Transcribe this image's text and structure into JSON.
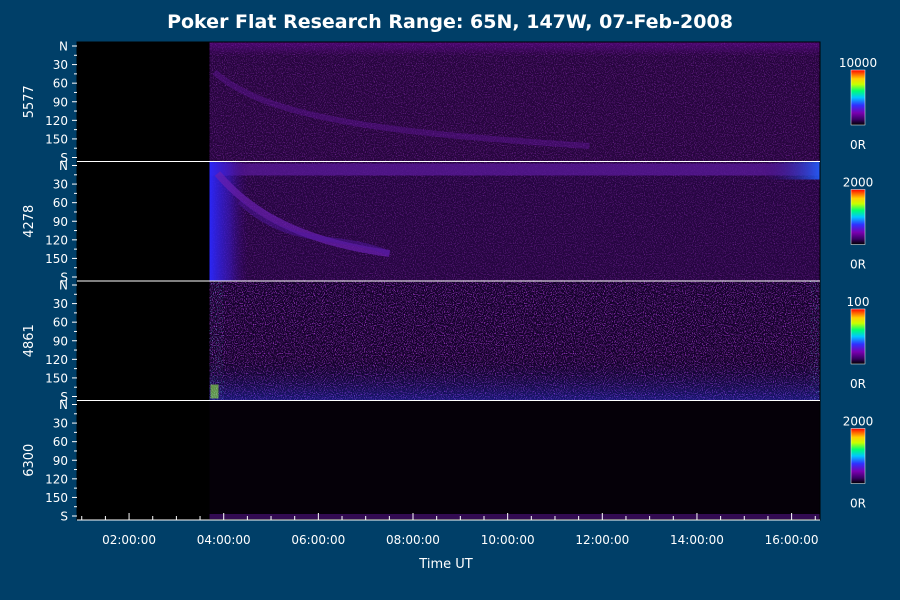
{
  "chart_data": {
    "type": "heatmap",
    "title": "Poker Flat Research Range: 65N, 147W, 07-Feb-2008",
    "xlabel": "Time UT",
    "x_tick_labels": [
      "02:00:00",
      "04:00:00",
      "06:00:00",
      "08:00:00",
      "10:00:00",
      "12:00:00",
      "14:00:00",
      "16:00:00"
    ],
    "x_range_hours_ut": [
      0.9,
      16.6
    ],
    "data_start_hours_ut": 3.7,
    "y_tick_labels": [
      "N",
      "30",
      "60",
      "90",
      "120",
      "150",
      "S"
    ],
    "y_range_degrees": [
      0,
      180
    ],
    "colorscale": [
      "#000000",
      "#3a0066",
      "#7a00b0",
      "#3030ff",
      "#00c8ff",
      "#00ff70",
      "#c8ff00",
      "#ffd000",
      "#ff6000",
      "#ff0000"
    ],
    "panels": [
      {
        "label": "5577",
        "color_max": "10000",
        "color_min": "0R",
        "description": "faint diffuse purple emission across all scan angles; brighter near N edge"
      },
      {
        "label": "4278",
        "color_max": "2000",
        "color_min": "0R",
        "description": "blue burst at start of data near 04:00, arc drifting from N toward ~150 deg until ~08:00, brightening at N edge after 15:00"
      },
      {
        "label": "4861",
        "color_max": "100",
        "color_min": "0R",
        "description": "noisy speckled signal across whole panel, strongest near S edge and at start of data"
      },
      {
        "label": "6300",
        "color_max": "2000",
        "color_min": "0R",
        "description": "nearly black, weak emission only along S edge"
      }
    ]
  }
}
